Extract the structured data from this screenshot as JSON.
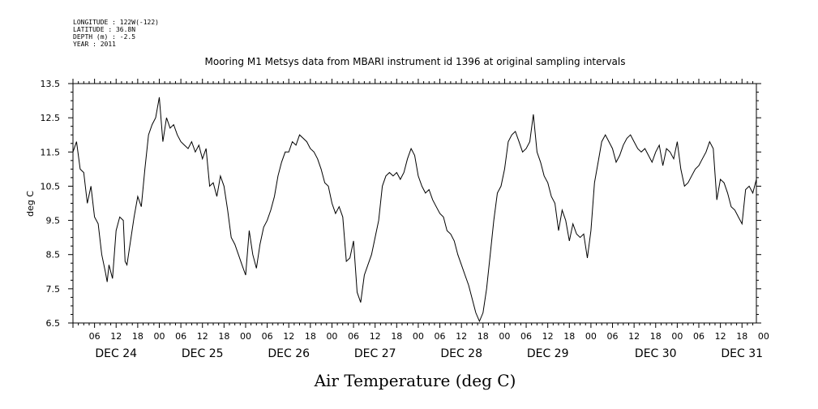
{
  "meta": {
    "longitude": "LONGITUDE : 122W(-122)",
    "latitude": "LATITUDE : 36.8N",
    "depth": "DEPTH (m) : -2.5",
    "year": "YEAR : 2011"
  },
  "chart_data": {
    "type": "line",
    "title": "Mooring M1 Metsys data from MBARI instrument id 1396 at original sampling intervals",
    "xlabel": "Air Temperature (deg C)",
    "ylabel": "deg C",
    "ylim": [
      6.5,
      13.5
    ],
    "yticks": [
      "6.5",
      "7.5",
      "8.5",
      "9.5",
      "10.5",
      "11.5",
      "12.5",
      "13.5"
    ],
    "xlim_hours": [
      0,
      190
    ],
    "hour_tick_labels": [
      "06",
      "12",
      "18",
      "00",
      "06",
      "12",
      "18",
      "00",
      "06",
      "12",
      "18",
      "00",
      "06",
      "12",
      "18",
      "00",
      "06",
      "12",
      "18",
      "00",
      "06",
      "12",
      "18",
      "00",
      "06",
      "12",
      "18",
      "00",
      "06",
      "12",
      "18",
      "00"
    ],
    "day_labels": [
      "DEC 24",
      "DEC 25",
      "DEC 26",
      "DEC 27",
      "DEC 28",
      "DEC 29",
      "DEC 30",
      "DEC 31"
    ],
    "grid": false,
    "series": [
      {
        "points": [
          [
            0,
            11.5
          ],
          [
            1,
            11.8
          ],
          [
            2,
            11.0
          ],
          [
            3,
            10.9
          ],
          [
            4,
            10.0
          ],
          [
            5,
            10.5
          ],
          [
            6,
            9.6
          ],
          [
            7,
            9.4
          ],
          [
            8,
            8.5
          ],
          [
            9,
            8.0
          ],
          [
            9.5,
            7.7
          ],
          [
            10,
            8.2
          ],
          [
            11,
            7.8
          ],
          [
            12,
            9.2
          ],
          [
            13,
            9.6
          ],
          [
            14,
            9.5
          ],
          [
            14.5,
            8.3
          ],
          [
            15,
            8.2
          ],
          [
            16,
            8.9
          ],
          [
            17,
            9.6
          ],
          [
            18,
            10.2
          ],
          [
            19,
            9.9
          ],
          [
            20,
            11.0
          ],
          [
            21,
            12.0
          ],
          [
            22,
            12.3
          ],
          [
            23,
            12.5
          ],
          [
            24,
            13.1
          ],
          [
            25,
            11.8
          ],
          [
            26,
            12.5
          ],
          [
            27,
            12.2
          ],
          [
            28,
            12.3
          ],
          [
            29,
            12.0
          ],
          [
            30,
            11.8
          ],
          [
            31,
            11.7
          ],
          [
            32,
            11.6
          ],
          [
            33,
            11.8
          ],
          [
            34,
            11.5
          ],
          [
            35,
            11.7
          ],
          [
            36,
            11.3
          ],
          [
            37,
            11.6
          ],
          [
            38,
            10.5
          ],
          [
            39,
            10.6
          ],
          [
            40,
            10.2
          ],
          [
            41,
            10.8
          ],
          [
            42,
            10.5
          ],
          [
            43,
            9.8
          ],
          [
            44,
            9.0
          ],
          [
            45,
            8.8
          ],
          [
            46,
            8.5
          ],
          [
            47,
            8.2
          ],
          [
            48,
            7.9
          ],
          [
            49,
            9.2
          ],
          [
            50,
            8.5
          ],
          [
            51,
            8.1
          ],
          [
            52,
            8.8
          ],
          [
            53,
            9.3
          ],
          [
            54,
            9.5
          ],
          [
            55,
            9.8
          ],
          [
            56,
            10.2
          ],
          [
            57,
            10.8
          ],
          [
            58,
            11.2
          ],
          [
            59,
            11.5
          ],
          [
            60,
            11.5
          ],
          [
            61,
            11.8
          ],
          [
            62,
            11.7
          ],
          [
            63,
            12.0
          ],
          [
            64,
            11.9
          ],
          [
            65,
            11.8
          ],
          [
            66,
            11.6
          ],
          [
            67,
            11.5
          ],
          [
            68,
            11.3
          ],
          [
            69,
            11.0
          ],
          [
            70,
            10.6
          ],
          [
            71,
            10.5
          ],
          [
            72,
            10.0
          ],
          [
            73,
            9.7
          ],
          [
            74,
            9.9
          ],
          [
            75,
            9.6
          ],
          [
            76,
            8.3
          ],
          [
            77,
            8.4
          ],
          [
            78,
            8.9
          ],
          [
            79,
            7.4
          ],
          [
            80,
            7.1
          ],
          [
            81,
            7.9
          ],
          [
            82,
            8.2
          ],
          [
            83,
            8.5
          ],
          [
            84,
            9.0
          ],
          [
            85,
            9.5
          ],
          [
            86,
            10.5
          ],
          [
            87,
            10.8
          ],
          [
            88,
            10.9
          ],
          [
            89,
            10.8
          ],
          [
            90,
            10.9
          ],
          [
            91,
            10.7
          ],
          [
            92,
            10.9
          ],
          [
            93,
            11.3
          ],
          [
            94,
            11.6
          ],
          [
            95,
            11.4
          ],
          [
            96,
            10.8
          ],
          [
            97,
            10.5
          ],
          [
            98,
            10.3
          ],
          [
            99,
            10.4
          ],
          [
            100,
            10.1
          ],
          [
            101,
            9.9
          ],
          [
            102,
            9.7
          ],
          [
            103,
            9.6
          ],
          [
            104,
            9.2
          ],
          [
            105,
            9.1
          ],
          [
            106,
            8.9
          ],
          [
            107,
            8.5
          ],
          [
            108,
            8.2
          ],
          [
            109,
            7.9
          ],
          [
            110,
            7.6
          ],
          [
            111,
            7.2
          ],
          [
            112,
            6.8
          ],
          [
            113,
            6.55
          ],
          [
            114,
            6.8
          ],
          [
            115,
            7.5
          ],
          [
            116,
            8.5
          ],
          [
            117,
            9.5
          ],
          [
            118,
            10.3
          ],
          [
            119,
            10.5
          ],
          [
            120,
            11.0
          ],
          [
            121,
            11.8
          ],
          [
            122,
            12.0
          ],
          [
            123,
            12.1
          ],
          [
            124,
            11.8
          ],
          [
            125,
            11.5
          ],
          [
            126,
            11.6
          ],
          [
            127,
            11.8
          ],
          [
            128,
            12.6
          ],
          [
            129,
            11.5
          ],
          [
            130,
            11.2
          ],
          [
            131,
            10.8
          ],
          [
            132,
            10.6
          ],
          [
            133,
            10.2
          ],
          [
            134,
            10.0
          ],
          [
            135,
            9.2
          ],
          [
            136,
            9.8
          ],
          [
            137,
            9.5
          ],
          [
            138,
            8.9
          ],
          [
            139,
            9.4
          ],
          [
            140,
            9.1
          ],
          [
            141,
            9.0
          ],
          [
            142,
            9.1
          ],
          [
            143,
            8.4
          ],
          [
            144,
            9.2
          ],
          [
            145,
            10.6
          ],
          [
            146,
            11.2
          ],
          [
            147,
            11.8
          ],
          [
            148,
            12.0
          ],
          [
            149,
            11.8
          ],
          [
            150,
            11.6
          ],
          [
            151,
            11.2
          ],
          [
            152,
            11.4
          ],
          [
            153,
            11.7
          ],
          [
            154,
            11.9
          ],
          [
            155,
            12.0
          ],
          [
            156,
            11.8
          ],
          [
            157,
            11.6
          ],
          [
            158,
            11.5
          ],
          [
            159,
            11.6
          ],
          [
            160,
            11.4
          ],
          [
            161,
            11.2
          ],
          [
            162,
            11.5
          ],
          [
            163,
            11.7
          ],
          [
            164,
            11.1
          ],
          [
            165,
            11.6
          ],
          [
            166,
            11.5
          ],
          [
            167,
            11.3
          ],
          [
            168,
            11.8
          ],
          [
            169,
            11.0
          ],
          [
            170,
            10.5
          ],
          [
            171,
            10.6
          ],
          [
            172,
            10.8
          ],
          [
            173,
            11.0
          ],
          [
            174,
            11.1
          ],
          [
            175,
            11.3
          ],
          [
            176,
            11.5
          ],
          [
            177,
            11.8
          ],
          [
            178,
            11.6
          ],
          [
            179,
            10.1
          ],
          [
            180,
            10.7
          ],
          [
            181,
            10.6
          ],
          [
            182,
            10.3
          ],
          [
            183,
            9.9
          ],
          [
            184,
            9.8
          ],
          [
            185,
            9.6
          ],
          [
            186,
            9.4
          ],
          [
            187,
            10.4
          ],
          [
            188,
            10.5
          ],
          [
            189,
            10.3
          ],
          [
            190,
            10.7
          ]
        ]
      }
    ]
  }
}
